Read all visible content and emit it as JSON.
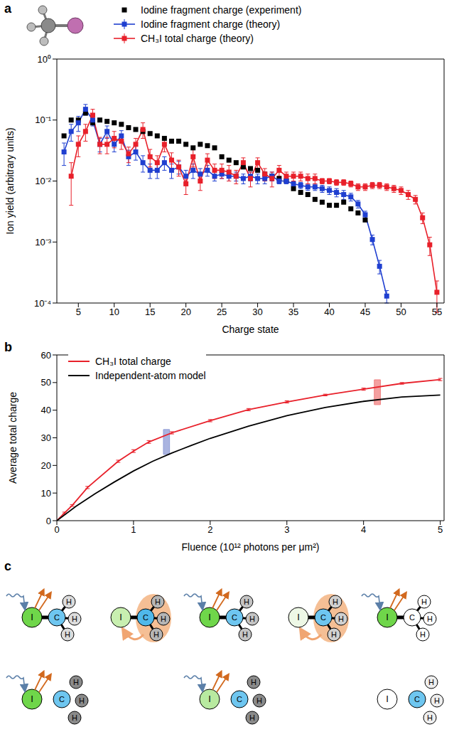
{
  "chart_data": [
    {
      "label": "a",
      "type": "line",
      "x_label": "Charge state",
      "y_label": "Ion yield (arbitrary units)",
      "log": "y",
      "legend": "top",
      "xlim": [
        2,
        56
      ],
      "xticks": [
        5,
        10,
        15,
        20,
        25,
        30,
        35,
        40,
        45,
        50,
        55
      ],
      "ylim": [
        0.0001,
        1
      ],
      "yticks": [
        {
          "value": 0.0001,
          "label": "10⁻⁴"
        },
        {
          "value": 0.001,
          "label": "10⁻³"
        },
        {
          "value": 0.01,
          "label": "10⁻²"
        },
        {
          "value": 0.1,
          "label": "10⁻¹"
        },
        {
          "value": 1,
          "label": "10⁰"
        }
      ],
      "x": [
        3,
        4,
        5,
        6,
        7,
        8,
        9,
        10,
        11,
        12,
        13,
        14,
        15,
        16,
        17,
        18,
        19,
        20,
        21,
        22,
        23,
        24,
        25,
        26,
        27,
        28,
        29,
        30,
        31,
        32,
        33,
        34,
        35,
        36,
        37,
        38,
        39,
        40,
        41,
        42,
        43,
        44,
        45,
        46,
        47,
        48,
        49,
        50,
        51,
        52,
        53,
        54,
        55
      ],
      "series": [
        {
          "name": "Iodine fragment charge (experiment)",
          "color": "#000000",
          "marker": "square",
          "line_style": "none",
          "values": [
            0.055,
            0.1,
            0.1,
            0.13,
            0.09,
            0.1,
            0.095,
            0.09,
            0.085,
            0.075,
            0.07,
            0.065,
            0.06,
            0.055,
            0.05,
            0.045,
            0.045,
            0.04,
            0.035,
            0.04,
            0.038,
            0.035,
            0.025,
            0.022,
            0.02,
            0.017,
            0.016,
            0.015,
            0.013,
            0.012,
            0.011,
            0.01,
            0.0075,
            0.0065,
            0.006,
            0.005,
            0.0045,
            0.004,
            0.004,
            0.0045,
            0.0035,
            0.003,
            0.0023,
            null,
            null,
            null,
            null,
            null,
            null,
            null,
            null,
            null,
            null
          ]
        },
        {
          "name": "Iodine fragment charge (theory)",
          "color": "#1f3fd0",
          "marker": "square",
          "line_style": "solid",
          "values": [
            0.03,
            0.065,
            0.09,
            0.15,
            0.1,
            0.04,
            0.065,
            0.04,
            0.055,
            0.025,
            0.03,
            0.02,
            0.015,
            0.015,
            0.02,
            0.015,
            0.017,
            0.012,
            0.015,
            0.013,
            0.015,
            0.012,
            0.013,
            0.012,
            0.012,
            0.011,
            0.012,
            0.011,
            0.011,
            0.012,
            0.01,
            0.01,
            0.009,
            0.0085,
            0.008,
            0.008,
            0.0075,
            0.007,
            0.0065,
            0.006,
            0.0055,
            0.0042,
            0.0028,
            0.0011,
            0.0004,
            0.00013,
            null,
            null,
            null,
            null,
            null,
            null,
            null
          ],
          "errors": [
            0.012,
            0.02,
            0.025,
            0.03,
            0.02,
            0.01,
            0.015,
            0.01,
            0.012,
            0.007,
            0.008,
            0.006,
            0.004,
            0.004,
            0.005,
            0.004,
            0.004,
            0.003,
            0.004,
            0.003,
            0.003,
            0.002,
            0.002,
            0.002,
            0.002,
            0.002,
            0.002,
            0.002,
            0.002,
            0.002,
            0.001,
            0.001,
            0.001,
            0.001,
            0.001,
            0.001,
            0.001,
            0.001,
            0.001,
            0.001,
            0.0008,
            0.0006,
            0.0004,
            0.0002,
            0.0001,
            3e-05,
            null,
            null,
            null,
            null,
            null,
            null,
            null
          ]
        },
        {
          "name": "CH₃I total charge (theory)",
          "color": "#e8202a",
          "marker": "square",
          "line_style": "solid",
          "values": [
            null,
            0.012,
            0.04,
            0.065,
            0.12,
            0.04,
            0.04,
            0.05,
            0.045,
            0.028,
            0.04,
            0.07,
            0.025,
            0.02,
            0.04,
            0.022,
            0.017,
            0.009,
            0.025,
            0.01,
            0.022,
            0.015,
            0.015,
            0.014,
            0.012,
            0.02,
            0.011,
            0.02,
            0.013,
            0.011,
            0.015,
            0.012,
            0.012,
            0.012,
            0.011,
            0.011,
            0.01,
            0.01,
            0.0095,
            0.0095,
            0.009,
            0.008,
            0.008,
            0.0085,
            0.0085,
            0.008,
            0.0075,
            0.007,
            0.006,
            0.005,
            0.0025,
            0.0009,
            0.00015
          ],
          "errors": [
            null,
            0.008,
            0.015,
            0.02,
            0.03,
            0.012,
            0.012,
            0.015,
            0.012,
            0.008,
            0.01,
            0.02,
            0.008,
            0.006,
            0.01,
            0.007,
            0.005,
            0.003,
            0.008,
            0.003,
            0.006,
            0.004,
            0.004,
            0.004,
            0.003,
            0.004,
            0.003,
            0.004,
            0.003,
            0.003,
            0.003,
            0.002,
            0.002,
            0.002,
            0.002,
            0.002,
            0.001,
            0.001,
            0.001,
            0.001,
            0.001,
            0.001,
            0.001,
            0.001,
            0.001,
            0.001,
            0.001,
            0.001,
            0.001,
            0.0008,
            0.0005,
            0.0003,
            8e-05
          ]
        }
      ]
    },
    {
      "label": "b",
      "type": "line",
      "x_label": "Fluence (10¹² photons per μm²)",
      "y_label": "Average total charge",
      "legend": "top left",
      "xlim": [
        0,
        5.05
      ],
      "xticks": [
        0,
        1,
        2,
        3,
        4,
        5
      ],
      "ylim": [
        0,
        60
      ],
      "yticks": [
        0,
        10,
        20,
        30,
        40,
        50,
        60
      ],
      "series": [
        {
          "name": "CH₃I total charge",
          "color": "#e8202a",
          "marker": "none",
          "line_style": "solid",
          "x": [
            0,
            0.1,
            0.2,
            0.4,
            0.8,
            1,
            1.2,
            1.5,
            2,
            2.5,
            3,
            3.5,
            4,
            4.5,
            5
          ],
          "values": [
            0,
            2.8,
            5.5,
            12,
            21.5,
            25.2,
            28.5,
            31.8,
            36.2,
            40.2,
            43,
            45.5,
            47.6,
            49.7,
            51.1
          ],
          "errors": [
            0,
            0.3,
            0.3,
            0.4,
            0.4,
            0.5,
            0.5,
            0.4,
            0.4,
            0.4,
            0.4,
            0.3,
            0.4,
            0.3,
            0.4
          ]
        },
        {
          "name": "Independent-atom model",
          "color": "#000000",
          "marker": "none",
          "line_style": "solid",
          "x": [
            0,
            0.25,
            0.5,
            0.75,
            1,
            1.25,
            1.5,
            1.75,
            2,
            2.5,
            3,
            3.5,
            4,
            4.5,
            5
          ],
          "values": [
            0,
            5.2,
            9.8,
            14,
            18,
            21.5,
            24.5,
            27.2,
            29.8,
            34.2,
            38,
            41,
            43.2,
            44.8,
            45.5
          ]
        }
      ],
      "highlights": [
        {
          "x_range": [
            1.39,
            1.47
          ],
          "y_range": [
            24,
            33
          ],
          "color": "#8e9bd6"
        },
        {
          "x_range": [
            4.14,
            4.22
          ],
          "y_range": [
            42,
            51
          ],
          "color": "#f08080"
        }
      ]
    }
  ],
  "diagram": {
    "label": "c",
    "rows": [
      [
        {
          "bonded": true,
          "xray": true,
          "hole": false,
          "atoms": [
            {
              "label": "I",
              "color": "#6fd64a"
            },
            {
              "label": "C",
              "color": "#6ec6f0"
            },
            {
              "label": "H",
              "color": "#dcdcdc"
            },
            {
              "label": "H",
              "color": "#dcdcdc"
            },
            {
              "label": "H",
              "color": "#dcdcdc"
            }
          ]
        },
        {
          "bonded": true,
          "xray": false,
          "hole": true,
          "atoms": [
            {
              "label": "I",
              "color": "#c8efb0"
            },
            {
              "label": "C",
              "color": "#4fb8ea"
            },
            {
              "label": "H",
              "color": "#b5b5b5"
            },
            {
              "label": "H",
              "color": "#b5b5b5"
            },
            {
              "label": "H",
              "color": "#b5b5b5"
            }
          ]
        },
        {
          "bonded": true,
          "xray": true,
          "hole": false,
          "atoms": [
            {
              "label": "I",
              "color": "#6fd64a"
            },
            {
              "label": "C",
              "color": "#6ec6f0"
            },
            {
              "label": "H",
              "color": "#c4c4c4"
            },
            {
              "label": "H",
              "color": "#c4c4c4"
            },
            {
              "label": "H",
              "color": "#c4c4c4"
            }
          ]
        },
        {
          "bonded": true,
          "xray": false,
          "hole": true,
          "atoms": [
            {
              "label": "I",
              "color": "#eef8e6"
            },
            {
              "label": "C",
              "color": "#6ec6f0"
            },
            {
              "label": "H",
              "color": "#d0d0d0"
            },
            {
              "label": "H",
              "color": "#d0d0d0"
            },
            {
              "label": "H",
              "color": "#d0d0d0"
            }
          ]
        },
        {
          "bonded": true,
          "xray": true,
          "hole": false,
          "atoms": [
            {
              "label": "I",
              "color": "#6fd64a"
            },
            {
              "label": "C",
              "color": "#ffffff"
            },
            {
              "label": "H",
              "color": "#ffffff"
            },
            {
              "label": "H",
              "color": "#ffffff"
            },
            {
              "label": "H",
              "color": "#ffffff"
            }
          ]
        }
      ],
      [
        {
          "bonded": false,
          "xray": true,
          "hole": false,
          "atoms": [
            {
              "label": "I",
              "color": "#6fd64a"
            },
            {
              "label": "C",
              "color": "#6ec6f0"
            },
            {
              "label": "H",
              "color": "#8a8a8a"
            },
            {
              "label": "H",
              "color": "#8a8a8a"
            },
            {
              "label": "H",
              "color": "#8a8a8a"
            }
          ]
        },
        null,
        {
          "bonded": false,
          "xray": true,
          "hole": false,
          "atoms": [
            {
              "label": "I",
              "color": "#b8eaa0"
            },
            {
              "label": "C",
              "color": "#6ec6f0"
            },
            {
              "label": "H",
              "color": "#8a8a8a"
            },
            {
              "label": "H",
              "color": "#8a8a8a"
            },
            {
              "label": "H",
              "color": "#8a8a8a"
            }
          ]
        },
        null,
        {
          "bonded": false,
          "xray": false,
          "hole": false,
          "atoms": [
            {
              "label": "I",
              "color": "#ffffff"
            },
            {
              "label": "C",
              "color": "#6ec6f0"
            },
            {
              "label": "H",
              "color": "#eeeeee"
            },
            {
              "label": "H",
              "color": "#eeeeee"
            },
            {
              "label": "H",
              "color": "#eeeeee"
            }
          ]
        }
      ]
    ]
  }
}
